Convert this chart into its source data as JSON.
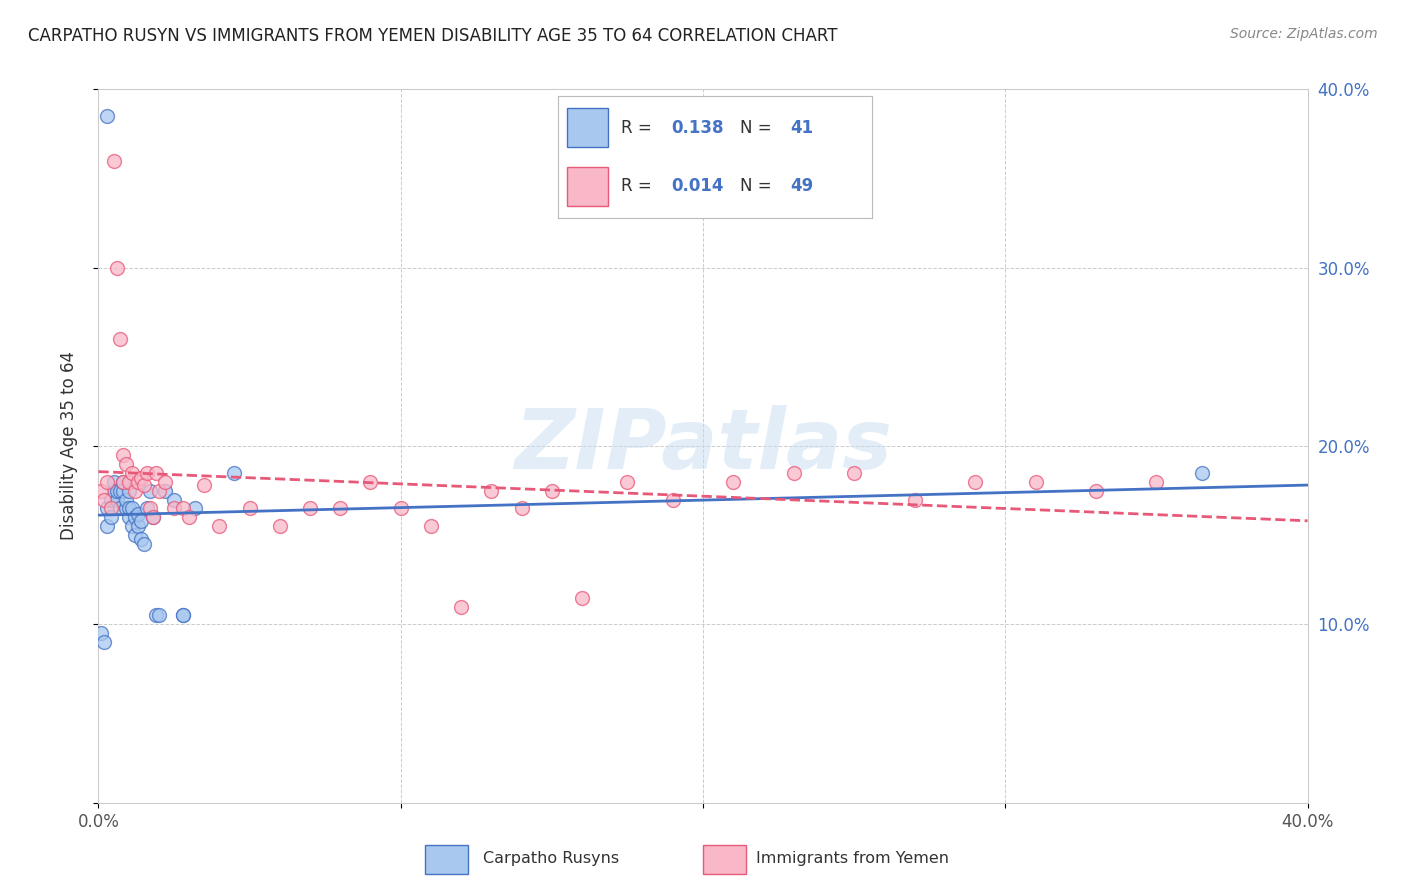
{
  "title": "CARPATHO RUSYN VS IMMIGRANTS FROM YEMEN DISABILITY AGE 35 TO 64 CORRELATION CHART",
  "source": "Source: ZipAtlas.com",
  "ylabel": "Disability Age 35 to 64",
  "xlim": [
    0.0,
    0.4
  ],
  "ylim": [
    0.0,
    0.4
  ],
  "blue_color": "#A8C8F0",
  "pink_color": "#F8B8C8",
  "blue_line_color": "#4472C4",
  "pink_line_color": "#E85878",
  "R_blue": "0.138",
  "N_blue": "41",
  "R_pink": "0.014",
  "N_pink": "49",
  "legend_label_blue": "Carpatho Rusyns",
  "legend_label_pink": "Immigrants from Yemen",
  "watermark_text": "ZIPatlas",
  "blue_scatter_x": [
    0.001,
    0.002,
    0.003,
    0.003,
    0.004,
    0.004,
    0.005,
    0.005,
    0.006,
    0.006,
    0.007,
    0.007,
    0.008,
    0.008,
    0.009,
    0.009,
    0.01,
    0.01,
    0.01,
    0.011,
    0.011,
    0.012,
    0.012,
    0.013,
    0.013,
    0.014,
    0.014,
    0.015,
    0.016,
    0.017,
    0.018,
    0.019,
    0.02,
    0.022,
    0.025,
    0.028,
    0.028,
    0.032,
    0.045,
    0.365,
    0.003
  ],
  "blue_scatter_y": [
    0.095,
    0.09,
    0.155,
    0.165,
    0.16,
    0.17,
    0.175,
    0.18,
    0.17,
    0.175,
    0.165,
    0.175,
    0.175,
    0.18,
    0.165,
    0.17,
    0.16,
    0.165,
    0.175,
    0.155,
    0.165,
    0.15,
    0.16,
    0.155,
    0.162,
    0.148,
    0.158,
    0.145,
    0.165,
    0.175,
    0.16,
    0.105,
    0.105,
    0.175,
    0.17,
    0.105,
    0.105,
    0.165,
    0.185,
    0.185,
    0.385
  ],
  "pink_scatter_x": [
    0.001,
    0.002,
    0.003,
    0.004,
    0.005,
    0.006,
    0.007,
    0.008,
    0.008,
    0.009,
    0.01,
    0.011,
    0.012,
    0.013,
    0.014,
    0.015,
    0.016,
    0.017,
    0.018,
    0.019,
    0.02,
    0.022,
    0.025,
    0.028,
    0.03,
    0.035,
    0.04,
    0.05,
    0.06,
    0.07,
    0.08,
    0.09,
    0.1,
    0.11,
    0.12,
    0.13,
    0.14,
    0.15,
    0.16,
    0.175,
    0.19,
    0.21,
    0.23,
    0.25,
    0.27,
    0.29,
    0.31,
    0.33,
    0.35
  ],
  "pink_scatter_y": [
    0.175,
    0.17,
    0.18,
    0.165,
    0.36,
    0.3,
    0.26,
    0.18,
    0.195,
    0.19,
    0.18,
    0.185,
    0.175,
    0.18,
    0.182,
    0.178,
    0.185,
    0.165,
    0.16,
    0.185,
    0.175,
    0.18,
    0.165,
    0.165,
    0.16,
    0.178,
    0.155,
    0.165,
    0.155,
    0.165,
    0.165,
    0.18,
    0.165,
    0.155,
    0.11,
    0.175,
    0.165,
    0.175,
    0.115,
    0.18,
    0.17,
    0.18,
    0.185,
    0.185,
    0.17,
    0.18,
    0.18,
    0.175,
    0.18
  ]
}
